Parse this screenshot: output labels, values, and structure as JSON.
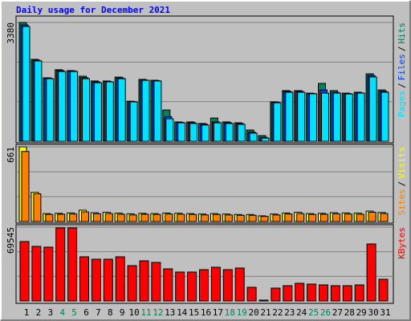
{
  "chart_data": [
    {
      "type": "bar",
      "title": "Daily usage for December 2021",
      "ylim": [
        0,
        3380
      ],
      "yticks": [
        3380
      ],
      "legend_separator": "/",
      "series": [
        {
          "name": "Hits",
          "color": "#00805c",
          "values": [
            3380,
            2330,
            1805,
            2035,
            2010,
            1850,
            1715,
            1715,
            1825,
            1140,
            1760,
            1735,
            890,
            550,
            550,
            505,
            660,
            550,
            525,
            320,
            160,
            1120,
            1440,
            1440,
            1370,
            1645,
            1440,
            1370,
            1395,
            1920,
            1460
          ]
        },
        {
          "name": "Files",
          "color": "#0040ff",
          "values": [
            3310,
            2305,
            1795,
            2010,
            2000,
            1810,
            1690,
            1700,
            1800,
            1130,
            1740,
            1725,
            700,
            535,
            530,
            485,
            550,
            530,
            505,
            260,
            110,
            1110,
            1420,
            1420,
            1360,
            1460,
            1390,
            1360,
            1375,
            1870,
            1420
          ]
        },
        {
          "name": "Pages",
          "color": "#00e0ff",
          "values": [
            3265,
            2285,
            1780,
            1985,
            1985,
            1780,
            1665,
            1690,
            1780,
            1120,
            1735,
            1715,
            640,
            525,
            505,
            460,
            525,
            505,
            480,
            230,
            90,
            1095,
            1395,
            1395,
            1350,
            1370,
            1370,
            1345,
            1370,
            1830,
            1395
          ]
        }
      ]
    },
    {
      "type": "bar",
      "ylim": [
        0,
        661
      ],
      "yticks": [
        661
      ],
      "legend_separator": "/",
      "series": [
        {
          "name": "Visits",
          "color": "#ffff00",
          "values": [
            661,
            258,
            70,
            72,
            76,
            100,
            78,
            82,
            74,
            68,
            72,
            70,
            75,
            73,
            70,
            66,
            70,
            66,
            62,
            62,
            50,
            66,
            75,
            82,
            70,
            72,
            78,
            76,
            74,
            92,
            80
          ]
        },
        {
          "name": "Sites",
          "color": "#ff8000",
          "values": [
            620,
            245,
            62,
            64,
            66,
            85,
            68,
            70,
            64,
            58,
            64,
            62,
            66,
            64,
            62,
            58,
            62,
            58,
            55,
            55,
            45,
            58,
            66,
            70,
            62,
            64,
            68,
            66,
            64,
            82,
            70
          ]
        }
      ]
    },
    {
      "type": "bar",
      "ylim": [
        0,
        69545
      ],
      "yticks": [
        69545
      ],
      "categories": [
        "1",
        "2",
        "3",
        "4",
        "5",
        "6",
        "7",
        "8",
        "9",
        "10",
        "11",
        "12",
        "13",
        "14",
        "15",
        "16",
        "17",
        "18",
        "19",
        "20",
        "21",
        "22",
        "23",
        "24",
        "25",
        "26",
        "27",
        "28",
        "29",
        "30",
        "31"
      ],
      "category_colors": [
        "#000000",
        "#000000",
        "#000000",
        "#00805c",
        "#00805c",
        "#000000",
        "#000000",
        "#000000",
        "#000000",
        "#000000",
        "#00805c",
        "#00805c",
        "#000000",
        "#000000",
        "#000000",
        "#000000",
        "#000000",
        "#00805c",
        "#00805c",
        "#000000",
        "#000000",
        "#000000",
        "#000000",
        "#000000",
        "#00805c",
        "#00805c",
        "#000000",
        "#000000",
        "#000000",
        "#000000",
        "#000000"
      ],
      "series": [
        {
          "name": "KBytes",
          "color": "#ff0000",
          "values": [
            55950,
            51410,
            50660,
            68790,
            68790,
            41580,
            39310,
            39310,
            41580,
            33260,
            37800,
            36290,
            30240,
            27220,
            27220,
            29480,
            31750,
            29480,
            30990,
            12850,
            760,
            12100,
            14360,
            16630,
            15870,
            15120,
            14360,
            14360,
            15120,
            53680,
            20410
          ]
        }
      ]
    }
  ]
}
